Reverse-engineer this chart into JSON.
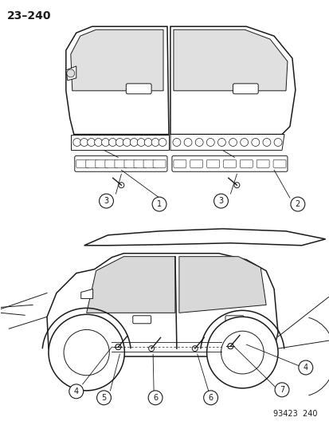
{
  "title_label": "23–240",
  "footer_label": "93423  240",
  "bg_color": "#ffffff",
  "line_color": "#1a1a1a",
  "title_fontsize": 10,
  "footer_fontsize": 7
}
